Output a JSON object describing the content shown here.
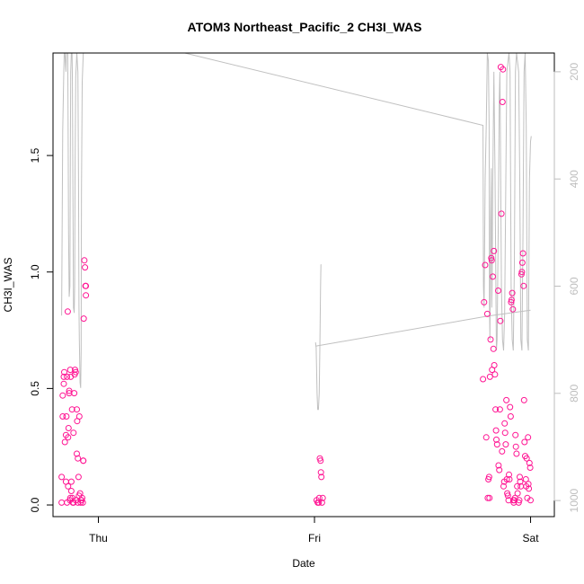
{
  "chart_data": {
    "type": "scatter",
    "title": "ATOM3 Northeast_Pacific_2 CH3I_WAS",
    "xlabel": "Date",
    "ylabel": "CH3I_WAS",
    "x_ticks": [
      {
        "label": "Thu",
        "day": 0.0
      },
      {
        "label": "Fri",
        "day": 1.0
      },
      {
        "label": "Sat",
        "day": 2.0
      }
    ],
    "xlim_days": [
      -0.21,
      2.11
    ],
    "ylim": [
      -0.05,
      1.94
    ],
    "y_ticks": [
      {
        "label": "0.0",
        "value": 0.0
      },
      {
        "label": "0.5",
        "value": 0.5
      },
      {
        "label": "1.0",
        "value": 1.0
      },
      {
        "label": "1.5",
        "value": 1.5
      }
    ],
    "right_axis": {
      "ylim": [
        1030,
        165
      ],
      "color": "#bebebe",
      "ticks": [
        {
          "label": "200",
          "value": 200
        },
        {
          "label": "400",
          "value": 400
        },
        {
          "label": "600",
          "value": 600
        },
        {
          "label": "800",
          "value": 800
        },
        {
          "label": "1000",
          "value": 1000
        }
      ]
    },
    "point_color": "#ff1493",
    "line_color": "#c0c0c0",
    "series": [
      {
        "values": [
          [
            -0.17,
            0.01
          ],
          [
            -0.17,
            0.12
          ],
          [
            -0.165,
            0.38
          ],
          [
            -0.165,
            0.47
          ],
          [
            -0.16,
            0.52
          ],
          [
            -0.16,
            0.55
          ],
          [
            -0.158,
            0.57
          ],
          [
            -0.155,
            0.27
          ],
          [
            -0.15,
            0.1
          ],
          [
            -0.15,
            0.3
          ],
          [
            -0.148,
            0.38
          ],
          [
            -0.145,
            0.01
          ],
          [
            -0.145,
            0.55
          ],
          [
            -0.142,
            0.83
          ],
          [
            -0.14,
            0.29
          ],
          [
            -0.14,
            0.08
          ],
          [
            -0.138,
            0.33
          ],
          [
            -0.135,
            0.49
          ],
          [
            -0.135,
            0.48
          ],
          [
            -0.132,
            0.02
          ],
          [
            -0.13,
            0.03
          ],
          [
            -0.13,
            0.58
          ],
          [
            -0.128,
            0.55
          ],
          [
            -0.125,
            0.1
          ],
          [
            -0.125,
            0.06
          ],
          [
            -0.122,
            0.41
          ],
          [
            -0.12,
            0.03
          ],
          [
            -0.118,
            0.01
          ],
          [
            -0.115,
            0.01
          ],
          [
            -0.115,
            0.31
          ],
          [
            -0.112,
            0.48
          ],
          [
            -0.11,
            0.56
          ],
          [
            -0.108,
            0.58
          ],
          [
            -0.105,
            0.57
          ],
          [
            -0.105,
            0.02
          ],
          [
            -0.1,
            0.41
          ],
          [
            -0.1,
            0.22
          ],
          [
            -0.098,
            0.36
          ],
          [
            -0.095,
            0.01
          ],
          [
            -0.095,
            0.2
          ],
          [
            -0.092,
            0.12
          ],
          [
            -0.09,
            0.04
          ],
          [
            -0.088,
            0.38
          ],
          [
            -0.085,
            0.05
          ],
          [
            -0.082,
            0.01
          ],
          [
            -0.08,
            0.02
          ],
          [
            -0.078,
            0.02
          ],
          [
            -0.075,
            0.03
          ],
          [
            -0.072,
            0.01
          ],
          [
            -0.07,
            0.19
          ],
          [
            -0.07,
            0.19
          ],
          [
            -0.068,
            0.8
          ],
          [
            -0.065,
            1.05
          ],
          [
            -0.062,
            1.02
          ],
          [
            -0.06,
            0.94
          ],
          [
            -0.058,
            0.94
          ],
          [
            -0.058,
            0.9
          ],
          [
            1.01,
            0.02
          ],
          [
            1.015,
            0.01
          ],
          [
            1.02,
            0.01
          ],
          [
            1.022,
            0.03
          ],
          [
            1.025,
            0.2
          ],
          [
            1.028,
            0.19
          ],
          [
            1.03,
            0.14
          ],
          [
            1.032,
            0.12
          ],
          [
            1.035,
            0.01
          ],
          [
            1.038,
            0.03
          ],
          [
            1.78,
            0.54
          ],
          [
            1.785,
            0.87
          ],
          [
            1.79,
            1.03
          ],
          [
            1.795,
            0.29
          ],
          [
            1.8,
            0.82
          ],
          [
            1.802,
            0.03
          ],
          [
            1.805,
            0.11
          ],
          [
            1.808,
            0.12
          ],
          [
            1.81,
            0.03
          ],
          [
            1.812,
            0.55
          ],
          [
            1.815,
            0.71
          ],
          [
            1.818,
            1.06
          ],
          [
            1.82,
            1.05
          ],
          [
            1.822,
            0.58
          ],
          [
            1.825,
            0.98
          ],
          [
            1.828,
            0.67
          ],
          [
            1.83,
            1.09
          ],
          [
            1.832,
            0.6
          ],
          [
            1.835,
            0.56
          ],
          [
            1.838,
            0.41
          ],
          [
            1.84,
            0.32
          ],
          [
            1.842,
            0.28
          ],
          [
            1.845,
            0.26
          ],
          [
            1.85,
            0.92
          ],
          [
            1.852,
            0.17
          ],
          [
            1.855,
            0.15
          ],
          [
            1.858,
            0.41
          ],
          [
            1.86,
            0.79
          ],
          [
            1.862,
            1.88
          ],
          [
            1.865,
            1.25
          ],
          [
            1.868,
            0.23
          ],
          [
            1.87,
            1.73
          ],
          [
            1.872,
            1.87
          ],
          [
            1.875,
            0.08
          ],
          [
            1.878,
            0.1
          ],
          [
            1.88,
            0.35
          ],
          [
            1.882,
            0.31
          ],
          [
            1.885,
            0.26
          ],
          [
            1.888,
            0.45
          ],
          [
            1.89,
            0.11
          ],
          [
            1.892,
            0.05
          ],
          [
            1.895,
            0.04
          ],
          [
            1.898,
            0.02
          ],
          [
            1.9,
            0.13
          ],
          [
            1.902,
            0.11
          ],
          [
            1.905,
            0.42
          ],
          [
            1.908,
            0.38
          ],
          [
            1.91,
            0.87
          ],
          [
            1.912,
            0.88
          ],
          [
            1.915,
            0.91
          ],
          [
            1.918,
            0.84
          ],
          [
            1.92,
            0.02
          ],
          [
            1.922,
            0.01
          ],
          [
            1.925,
            0.02
          ],
          [
            1.928,
            0.03
          ],
          [
            1.93,
            0.3
          ],
          [
            1.932,
            0.25
          ],
          [
            1.935,
            0.22
          ],
          [
            1.938,
            0.08
          ],
          [
            1.94,
            0.05
          ],
          [
            1.945,
            0.01
          ],
          [
            1.948,
            0.02
          ],
          [
            1.95,
            0.12
          ],
          [
            1.952,
            0.1
          ],
          [
            1.955,
            0.08
          ],
          [
            1.958,
            0.99
          ],
          [
            1.96,
            1.0
          ],
          [
            1.962,
            1.04
          ],
          [
            1.965,
            1.08
          ],
          [
            1.968,
            0.94
          ],
          [
            1.97,
            0.45
          ],
          [
            1.972,
            0.27
          ],
          [
            1.975,
            0.21
          ],
          [
            1.978,
            0.11
          ],
          [
            1.98,
            0.08
          ],
          [
            1.982,
            0.2
          ],
          [
            1.985,
            0.03
          ],
          [
            1.988,
            0.29
          ],
          [
            1.99,
            0.09
          ],
          [
            1.992,
            0.07
          ],
          [
            1.995,
            0.18
          ],
          [
            1.998,
            0.16
          ],
          [
            2.0,
            0.02
          ]
        ]
      }
    ],
    "altitude_line": [
      [
        -0.17,
        655
      ],
      [
        -0.165,
        310
      ],
      [
        -0.16,
        200
      ],
      [
        -0.158,
        100
      ],
      [
        -0.155,
        110
      ],
      [
        -0.15,
        200
      ],
      [
        -0.148,
        100
      ],
      [
        -0.145,
        60
      ],
      [
        -0.142,
        100
      ],
      [
        -0.14,
        300
      ],
      [
        -0.138,
        500
      ],
      [
        -0.135,
        620
      ],
      [
        -0.132,
        600
      ],
      [
        -0.13,
        400
      ],
      [
        -0.128,
        200
      ],
      [
        -0.125,
        160
      ],
      [
        -0.122,
        160
      ],
      [
        -0.12,
        220
      ],
      [
        -0.118,
        400
      ],
      [
        -0.115,
        640
      ],
      [
        -0.112,
        650
      ],
      [
        -0.11,
        600
      ],
      [
        -0.108,
        400
      ],
      [
        -0.105,
        210
      ],
      [
        -0.1,
        160
      ],
      [
        -0.095,
        200
      ],
      [
        -0.092,
        400
      ],
      [
        -0.09,
        640
      ],
      [
        -0.088,
        700
      ],
      [
        -0.085,
        780
      ],
      [
        -0.082,
        790
      ],
      [
        -0.08,
        720
      ],
      [
        -0.078,
        420
      ],
      [
        -0.075,
        220
      ],
      [
        -0.07,
        160
      ],
      [
        -0.065,
        160
      ],
      [
        0.4,
        160
      ],
      [
        1.78,
        300
      ],
      [
        1.782,
        600
      ],
      [
        1.785,
        640
      ],
      [
        1.79,
        400
      ],
      [
        1.795,
        300
      ],
      [
        1.8,
        160
      ],
      [
        1.805,
        180
      ],
      [
        1.808,
        300
      ],
      [
        1.81,
        640
      ],
      [
        1.812,
        700
      ],
      [
        1.815,
        480
      ],
      [
        1.818,
        380
      ],
      [
        1.82,
        640
      ],
      [
        1.822,
        600
      ],
      [
        1.825,
        400
      ],
      [
        1.83,
        200
      ],
      [
        1.835,
        380
      ],
      [
        1.84,
        640
      ],
      [
        1.842,
        720
      ],
      [
        1.845,
        700
      ],
      [
        1.85,
        500
      ],
      [
        1.855,
        250
      ],
      [
        1.858,
        200
      ],
      [
        1.86,
        300
      ],
      [
        1.865,
        600
      ],
      [
        1.87,
        700
      ],
      [
        1.875,
        720
      ],
      [
        1.88,
        650
      ],
      [
        1.885,
        420
      ],
      [
        1.89,
        200
      ],
      [
        1.9,
        160
      ],
      [
        1.905,
        200
      ],
      [
        1.91,
        600
      ],
      [
        1.915,
        700
      ],
      [
        1.92,
        720
      ],
      [
        1.925,
        560
      ],
      [
        1.93,
        200
      ],
      [
        1.935,
        160
      ],
      [
        1.945,
        200
      ],
      [
        1.95,
        400
      ],
      [
        1.955,
        700
      ],
      [
        1.96,
        720
      ],
      [
        1.965,
        500
      ],
      [
        1.97,
        200
      ],
      [
        1.975,
        160
      ],
      [
        1.98,
        300
      ],
      [
        1.985,
        700
      ],
      [
        1.99,
        720
      ],
      [
        1.995,
        400
      ],
      [
        2.0,
        330
      ],
      [
        2.003,
        320
      ]
    ],
    "altitude_line2": [
      [
        1.005,
        705
      ],
      [
        1.008,
        715
      ],
      [
        1.012,
        800
      ],
      [
        1.015,
        830
      ],
      [
        1.018,
        830
      ],
      [
        1.022,
        800
      ],
      [
        1.025,
        715
      ],
      [
        1.028,
        600
      ],
      [
        1.03,
        560
      ],
      [
        1.028,
        560
      ]
    ],
    "altitude_connector": [
      [
        1.005,
        712
      ],
      [
        1.8,
        656
      ],
      [
        2.0,
        645
      ]
    ],
    "grid": false
  }
}
